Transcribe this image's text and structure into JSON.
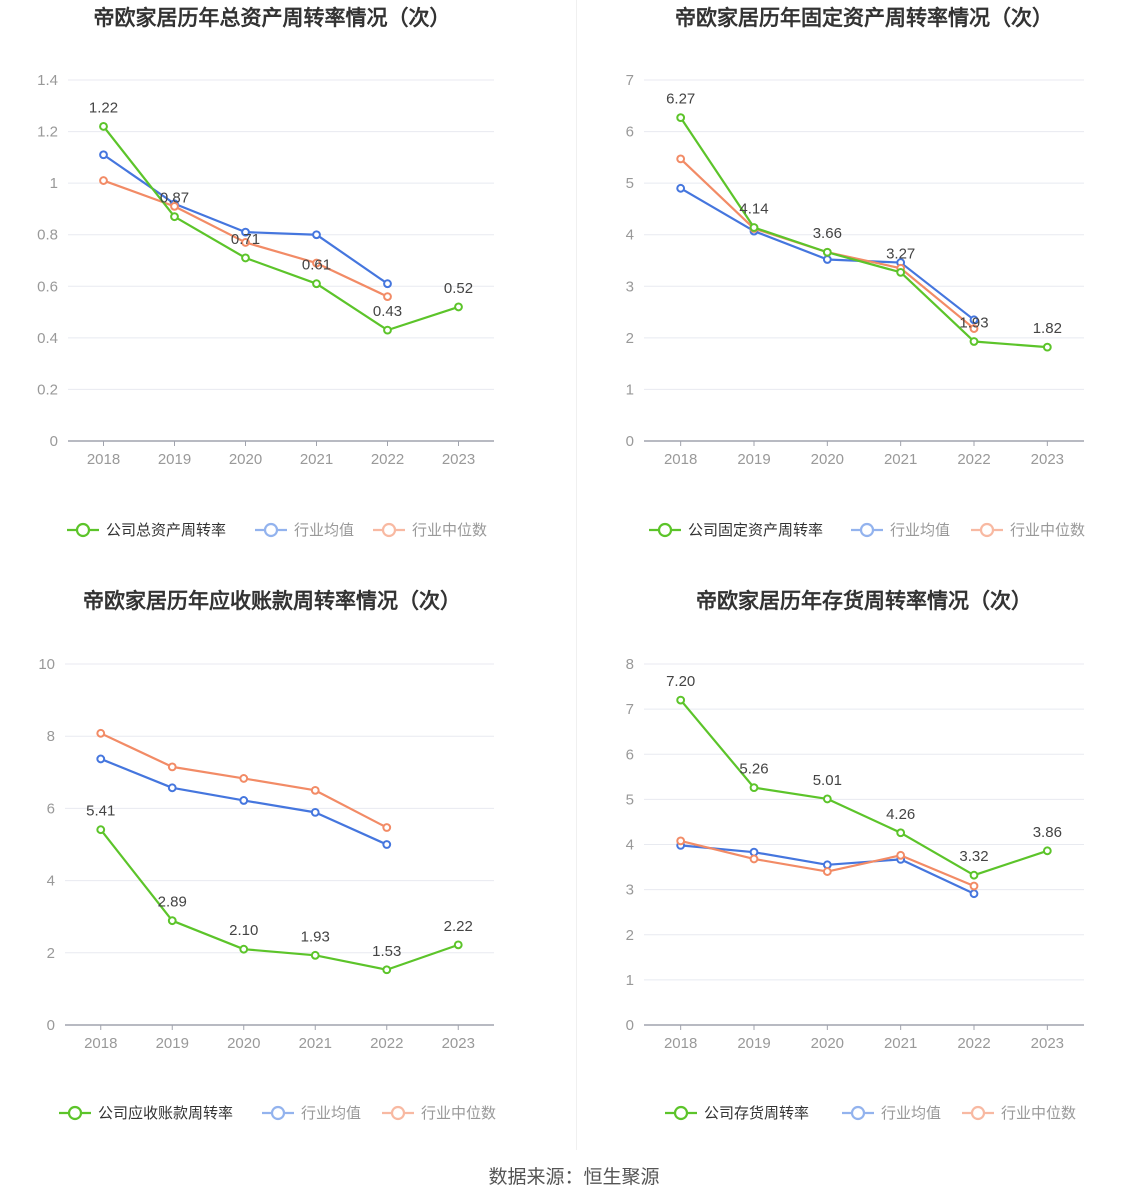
{
  "colors": {
    "company": "#5cc42a",
    "avg": "#4576de",
    "median": "#f28b66",
    "avg_legend": "#93b3ee",
    "median_legend": "#f8b9a2",
    "grid": "#e8eaf0",
    "axis": "#a0a3ad"
  },
  "source": "数据来源：恒生聚源",
  "chart_data": [
    {
      "type": "line",
      "title": "帝欧家居历年总资产周转率情况（次）",
      "x": [
        "2018",
        "2019",
        "2020",
        "2021",
        "2022",
        "2023"
      ],
      "y_ticks": [
        "0",
        "0.2",
        "0.4",
        "0.6",
        "0.8",
        "1",
        "1.2",
        "1.4"
      ],
      "ylim": [
        0,
        1.4
      ],
      "series": [
        {
          "name": "公司总资产周转率",
          "values": [
            1.22,
            0.87,
            0.71,
            0.61,
            0.43,
            0.52
          ],
          "labels": [
            "1.22",
            "0.87",
            "0.71",
            "0.61",
            "0.43",
            "0.52"
          ]
        },
        {
          "name": "行业均值",
          "values": [
            1.11,
            0.92,
            0.81,
            0.8,
            0.61,
            null
          ]
        },
        {
          "name": "行业中位数",
          "values": [
            1.01,
            0.91,
            0.77,
            0.69,
            0.56,
            null
          ]
        }
      ]
    },
    {
      "type": "line",
      "title": "帝欧家居历年固定资产周转率情况（次）",
      "x": [
        "2018",
        "2019",
        "2020",
        "2021",
        "2022",
        "2023"
      ],
      "y_ticks": [
        "0",
        "1",
        "2",
        "3",
        "4",
        "5",
        "6",
        "7"
      ],
      "ylim": [
        0,
        7
      ],
      "series": [
        {
          "name": "公司固定资产周转率",
          "values": [
            6.27,
            4.14,
            3.66,
            3.27,
            1.93,
            1.82
          ],
          "labels": [
            "6.27",
            "4.14",
            "3.66",
            "3.27",
            "1.93",
            "1.82"
          ]
        },
        {
          "name": "行业均值",
          "values": [
            4.9,
            4.07,
            3.52,
            3.46,
            2.35,
            null
          ]
        },
        {
          "name": "行业中位数",
          "values": [
            5.47,
            4.12,
            3.66,
            3.35,
            2.18,
            null
          ]
        }
      ]
    },
    {
      "type": "line",
      "title": "帝欧家居历年应收账款周转率情况（次）",
      "x": [
        "2018",
        "2019",
        "2020",
        "2021",
        "2022",
        "2023"
      ],
      "y_ticks": [
        "0",
        "2",
        "4",
        "6",
        "8",
        "10"
      ],
      "ylim": [
        0,
        10
      ],
      "series": [
        {
          "name": "公司应收账款周转率",
          "values": [
            5.41,
            2.89,
            2.1,
            1.93,
            1.53,
            2.22
          ],
          "labels": [
            "5.41",
            "2.89",
            "2.10",
            "1.93",
            "1.53",
            "2.22"
          ]
        },
        {
          "name": "行业均值",
          "values": [
            7.37,
            6.57,
            6.22,
            5.89,
            5.0,
            null
          ]
        },
        {
          "name": "行业中位数",
          "values": [
            8.08,
            7.15,
            6.83,
            6.5,
            5.47,
            null
          ]
        }
      ]
    },
    {
      "type": "line",
      "title": "帝欧家居历年存货周转率情况（次）",
      "x": [
        "2018",
        "2019",
        "2020",
        "2021",
        "2022",
        "2023"
      ],
      "y_ticks": [
        "0",
        "1",
        "2",
        "3",
        "4",
        "5",
        "6",
        "7",
        "8"
      ],
      "ylim": [
        0,
        8
      ],
      "series": [
        {
          "name": "公司存货周转率",
          "values": [
            7.2,
            5.26,
            5.01,
            4.26,
            3.32,
            3.86
          ],
          "labels": [
            "7.20",
            "5.26",
            "5.01",
            "4.26",
            "3.32",
            "3.86"
          ]
        },
        {
          "name": "行业均值",
          "values": [
            3.98,
            3.83,
            3.55,
            3.67,
            2.91,
            null
          ]
        },
        {
          "name": "行业中位数",
          "values": [
            4.08,
            3.68,
            3.4,
            3.76,
            3.08,
            null
          ]
        }
      ]
    }
  ]
}
